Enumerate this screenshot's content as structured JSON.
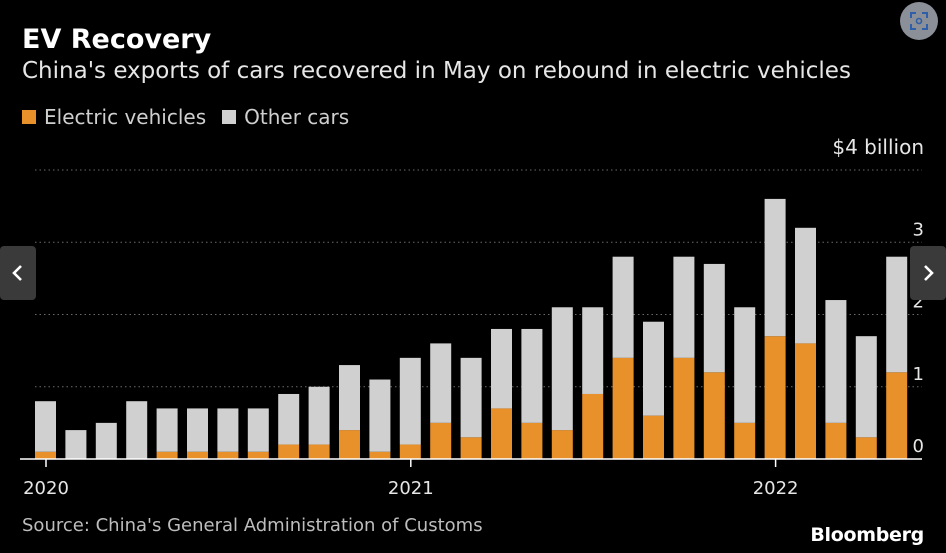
{
  "header": {
    "title": "EV Recovery",
    "subtitle": "China's exports of cars recovered in May on rebound in electric vehicles"
  },
  "legend": {
    "items": [
      {
        "label": "Electric vehicles",
        "color": "#e8912a"
      },
      {
        "label": "Other cars",
        "color": "#d0d0d0"
      }
    ]
  },
  "unit_label": "$4 billion",
  "footer": {
    "source": "Source: China's General Administration of Customs",
    "brand": "Bloomberg"
  },
  "controls": {
    "prev_icon": "chevron-left-icon",
    "next_icon": "chevron-right-icon",
    "expand_icon": "expand-icon"
  },
  "chart_data": {
    "type": "bar",
    "stacked": true,
    "categories": [
      "2020-01",
      "2020-02",
      "2020-03",
      "2020-04",
      "2020-05",
      "2020-06",
      "2020-07",
      "2020-08",
      "2020-09",
      "2020-10",
      "2020-11",
      "2020-12",
      "2021-01",
      "2021-02",
      "2021-03",
      "2021-04",
      "2021-05",
      "2021-06",
      "2021-07",
      "2021-08",
      "2021-09",
      "2021-10",
      "2021-11",
      "2021-12",
      "2022-01",
      "2022-02",
      "2022-03",
      "2022-04",
      "2022-05"
    ],
    "series": [
      {
        "name": "Electric vehicles",
        "color": "#e8912a",
        "values": [
          0.1,
          0.0,
          0.0,
          0.0,
          0.1,
          0.1,
          0.1,
          0.1,
          0.2,
          0.2,
          0.4,
          0.1,
          0.2,
          0.5,
          0.3,
          0.7,
          0.5,
          0.4,
          0.9,
          1.4,
          0.6,
          1.4,
          1.2,
          0.5,
          1.7,
          1.6,
          0.5,
          0.3,
          1.2
        ]
      },
      {
        "name": "Other cars",
        "color": "#d0d0d0",
        "values": [
          0.7,
          0.4,
          0.5,
          0.8,
          0.6,
          0.6,
          0.6,
          0.6,
          0.7,
          0.8,
          0.9,
          1.0,
          1.2,
          1.1,
          1.1,
          1.1,
          1.3,
          1.7,
          1.2,
          1.4,
          1.3,
          1.4,
          1.5,
          1.6,
          1.9,
          1.6,
          1.7,
          1.4,
          1.6
        ]
      }
    ],
    "x_tick_labels": [
      {
        "label": "2020",
        "index": 0
      },
      {
        "label": "2021",
        "index": 12
      },
      {
        "label": "2022",
        "index": 24
      }
    ],
    "y_tick_labels": [
      "0",
      "1",
      "2",
      "3"
    ],
    "ylim": [
      0,
      4
    ],
    "grid": true,
    "legend_position": "top-left"
  }
}
